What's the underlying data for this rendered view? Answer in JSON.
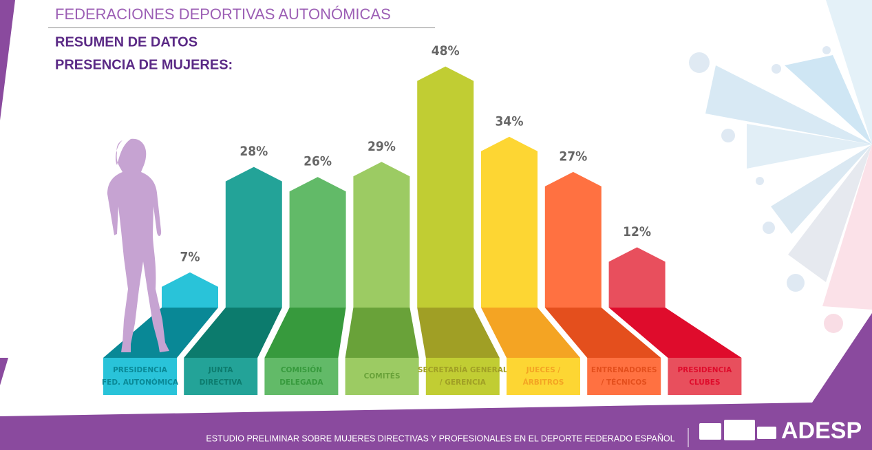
{
  "header": {
    "title": "FEDERACIONES DEPORTIVAS AUTONÓMICAS",
    "subtitle": [
      "RESUMEN DE DATOS",
      "PRESENCIA DE MUJERES:"
    ]
  },
  "chart_data": {
    "type": "bar",
    "categories": [
      [
        "PRESIDENCIA",
        "FED. AUTONÓMICA"
      ],
      [
        "JUNTA",
        "DIRECTIVA"
      ],
      [
        "COMISIÓN",
        "DELEGADA"
      ],
      [
        "COMITÉS"
      ],
      [
        "SECRETARÍA GENERAL",
        "/ GERENCIA"
      ],
      [
        "JUECES /",
        "ÁRBITROS"
      ],
      [
        "ENTRENADORES",
        "/ TÉCNICOS"
      ],
      [
        "PRESIDENCIA",
        "CLUBES"
      ]
    ],
    "values": [
      7,
      28,
      26,
      29,
      48,
      34,
      27,
      12
    ],
    "value_labels": [
      "7%",
      "28%",
      "26%",
      "29%",
      "48%",
      "34%",
      "27%",
      "12%"
    ],
    "colors": [
      "#29c3d9",
      "#23a398",
      "#62ba68",
      "#9ccb63",
      "#c1cd33",
      "#fdd633",
      "#ff7141",
      "#e84f5d"
    ],
    "base_colors": [
      "#098896",
      "#0c7b6d",
      "#379a3d",
      "#69a239",
      "#a09f25",
      "#f4a423",
      "#e44f1d",
      "#df0c2c"
    ]
  },
  "footer": {
    "text": "ESTUDIO PRELIMINAR SOBRE MUJERES DIRECTIVAS Y PROFESIONALES EN EL DEPORTE FEDERADO ESPAÑOL",
    "logo": "ADESP"
  }
}
